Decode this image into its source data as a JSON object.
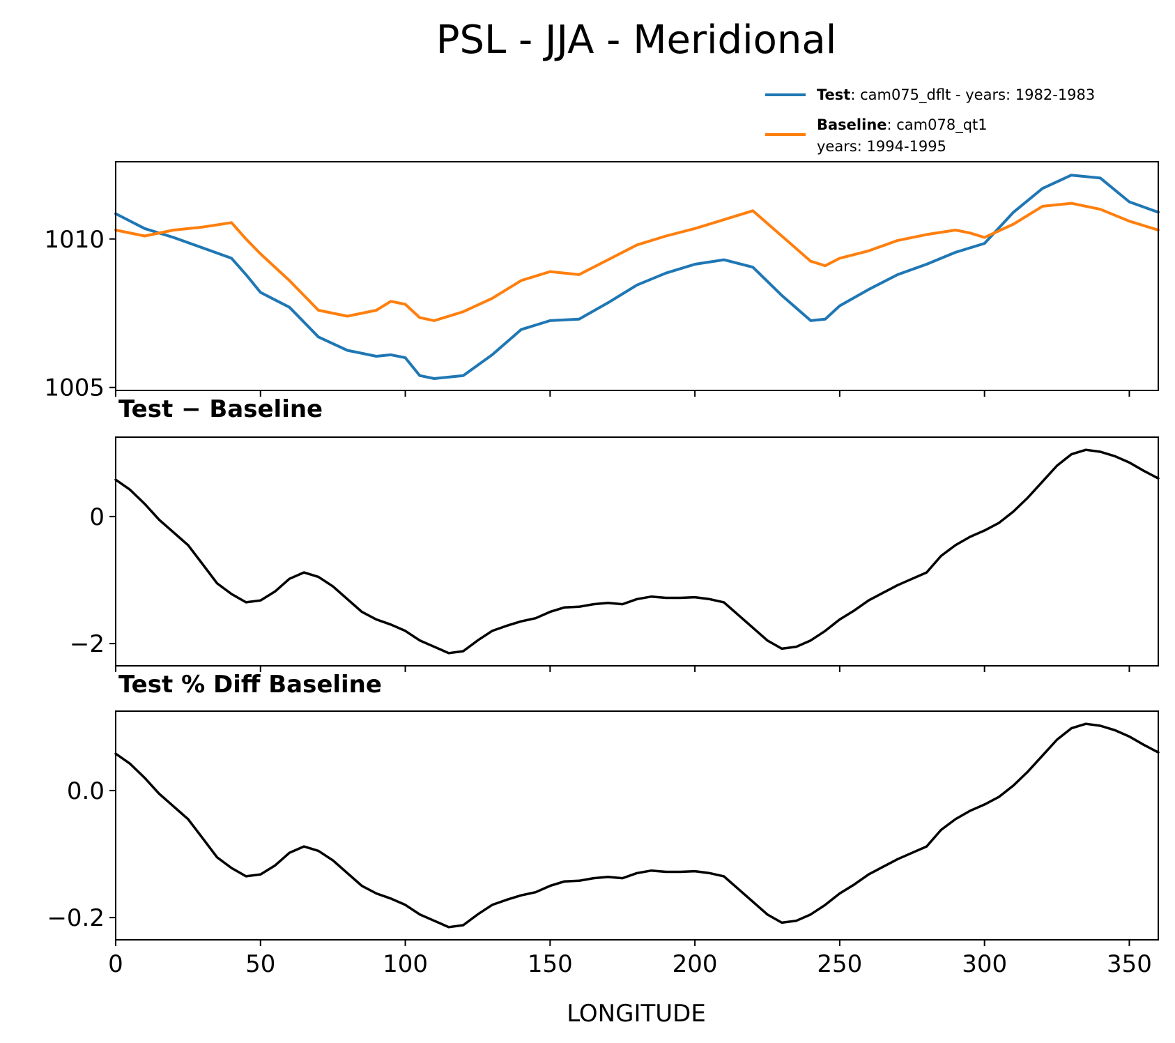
{
  "chart_data": [
    {
      "type": "line",
      "title": "PSL - JJA - Meridional",
      "xlabel": "",
      "ylabel": "",
      "xlim": [
        0,
        360
      ],
      "ylim": [
        1004.9,
        1012.6
      ],
      "yticks": [
        1005,
        1010
      ],
      "ytick_labels": [
        "1005",
        "1010"
      ],
      "x": [
        0,
        10,
        20,
        30,
        40,
        45,
        50,
        60,
        70,
        80,
        90,
        95,
        100,
        105,
        110,
        120,
        130,
        140,
        150,
        160,
        170,
        180,
        190,
        200,
        210,
        220,
        230,
        240,
        245,
        250,
        260,
        270,
        280,
        290,
        295,
        300,
        310,
        320,
        330,
        340,
        350,
        360
      ],
      "series": [
        {
          "name": "Test",
          "desc": ": cam075_dflt - years: 1982-1983",
          "color": "#1f77b4",
          "values": [
            1010.85,
            1010.35,
            1010.05,
            1009.7,
            1009.35,
            1008.8,
            1008.2,
            1007.7,
            1006.7,
            1006.25,
            1006.05,
            1006.1,
            1006.0,
            1005.4,
            1005.3,
            1005.4,
            1006.1,
            1006.95,
            1007.25,
            1007.3,
            1007.85,
            1008.45,
            1008.85,
            1009.15,
            1009.3,
            1009.05,
            1008.1,
            1007.25,
            1007.3,
            1007.75,
            1008.3,
            1008.8,
            1009.15,
            1009.55,
            1009.7,
            1009.85,
            1010.9,
            1011.7,
            1012.15,
            1012.05,
            1011.25,
            1010.9
          ]
        },
        {
          "name": "Baseline",
          "desc": ": cam078_qt1",
          "desc2": "years: 1994-1995",
          "color": "#ff7f0e",
          "values": [
            1010.3,
            1010.1,
            1010.3,
            1010.4,
            1010.55,
            1010.0,
            1009.5,
            1008.6,
            1007.6,
            1007.4,
            1007.6,
            1007.9,
            1007.8,
            1007.35,
            1007.25,
            1007.55,
            1008.0,
            1008.6,
            1008.9,
            1008.8,
            1009.3,
            1009.8,
            1010.1,
            1010.35,
            1010.65,
            1010.95,
            1010.1,
            1009.25,
            1009.1,
            1009.35,
            1009.6,
            1009.95,
            1010.15,
            1010.3,
            1010.2,
            1010.05,
            1010.5,
            1011.1,
            1011.2,
            1011.0,
            1010.6,
            1010.3
          ]
        }
      ]
    },
    {
      "type": "line",
      "title": "Test − Baseline",
      "xlabel": "",
      "ylabel": "",
      "xlim": [
        0,
        360
      ],
      "ylim": [
        -2.35,
        1.25
      ],
      "yticks": [
        -2,
        0
      ],
      "ytick_labels": [
        "−2",
        "0"
      ],
      "x": [
        0,
        5,
        10,
        15,
        20,
        25,
        30,
        35,
        40,
        45,
        50,
        55,
        60,
        65,
        70,
        75,
        80,
        85,
        90,
        95,
        100,
        105,
        110,
        115,
        120,
        125,
        130,
        135,
        140,
        145,
        150,
        155,
        160,
        165,
        170,
        175,
        180,
        185,
        190,
        195,
        200,
        205,
        210,
        215,
        220,
        225,
        230,
        235,
        240,
        245,
        250,
        255,
        260,
        265,
        270,
        275,
        280,
        285,
        290,
        295,
        300,
        305,
        310,
        315,
        320,
        325,
        330,
        335,
        340,
        345,
        350,
        355,
        360
      ],
      "series": [
        {
          "name": "Test − Baseline",
          "color": "#000000",
          "values": [
            0.58,
            0.42,
            0.2,
            -0.05,
            -0.25,
            -0.45,
            -0.75,
            -1.05,
            -1.22,
            -1.35,
            -1.32,
            -1.18,
            -0.98,
            -0.88,
            -0.95,
            -1.1,
            -1.3,
            -1.5,
            -1.62,
            -1.7,
            -1.8,
            -1.95,
            -2.05,
            -2.15,
            -2.12,
            -1.95,
            -1.8,
            -1.72,
            -1.65,
            -1.6,
            -1.5,
            -1.43,
            -1.42,
            -1.38,
            -1.36,
            -1.38,
            -1.3,
            -1.26,
            -1.28,
            -1.28,
            -1.27,
            -1.3,
            -1.35,
            -1.55,
            -1.75,
            -1.95,
            -2.08,
            -2.05,
            -1.95,
            -1.8,
            -1.62,
            -1.48,
            -1.32,
            -1.2,
            -1.08,
            -0.98,
            -0.88,
            -0.62,
            -0.45,
            -0.32,
            -0.22,
            -0.1,
            0.08,
            0.3,
            0.55,
            0.8,
            0.98,
            1.05,
            1.02,
            0.95,
            0.85,
            0.72,
            0.6
          ]
        }
      ]
    },
    {
      "type": "line",
      "title": "Test % Diff Baseline",
      "xlabel": "LONGITUDE",
      "ylabel": "",
      "xlim": [
        0,
        360
      ],
      "xticks": [
        0,
        50,
        100,
        150,
        200,
        250,
        300,
        350
      ],
      "xtick_labels": [
        "0",
        "50",
        "100",
        "150",
        "200",
        "250",
        "300",
        "350"
      ],
      "ylim": [
        -0.235,
        0.125
      ],
      "yticks": [
        -0.2,
        0.0
      ],
      "ytick_labels": [
        "−0.2",
        "0.0"
      ],
      "x": [
        0,
        5,
        10,
        15,
        20,
        25,
        30,
        35,
        40,
        45,
        50,
        55,
        60,
        65,
        70,
        75,
        80,
        85,
        90,
        95,
        100,
        105,
        110,
        115,
        120,
        125,
        130,
        135,
        140,
        145,
        150,
        155,
        160,
        165,
        170,
        175,
        180,
        185,
        190,
        195,
        200,
        205,
        210,
        215,
        220,
        225,
        230,
        235,
        240,
        245,
        250,
        255,
        260,
        265,
        270,
        275,
        280,
        285,
        290,
        295,
        300,
        305,
        310,
        315,
        320,
        325,
        330,
        335,
        340,
        345,
        350,
        355,
        360
      ],
      "series": [
        {
          "name": "Test % Diff Baseline",
          "color": "#000000",
          "values": [
            0.058,
            0.042,
            0.02,
            -0.005,
            -0.025,
            -0.045,
            -0.075,
            -0.105,
            -0.122,
            -0.135,
            -0.132,
            -0.118,
            -0.098,
            -0.088,
            -0.095,
            -0.11,
            -0.13,
            -0.15,
            -0.162,
            -0.17,
            -0.18,
            -0.195,
            -0.205,
            -0.215,
            -0.212,
            -0.195,
            -0.18,
            -0.172,
            -0.165,
            -0.16,
            -0.15,
            -0.143,
            -0.142,
            -0.138,
            -0.136,
            -0.138,
            -0.13,
            -0.126,
            -0.128,
            -0.128,
            -0.127,
            -0.13,
            -0.135,
            -0.155,
            -0.175,
            -0.195,
            -0.208,
            -0.205,
            -0.195,
            -0.18,
            -0.162,
            -0.148,
            -0.132,
            -0.12,
            -0.108,
            -0.098,
            -0.088,
            -0.062,
            -0.045,
            -0.032,
            -0.022,
            -0.01,
            0.008,
            0.03,
            0.055,
            0.08,
            0.098,
            0.105,
            0.102,
            0.095,
            0.085,
            0.072,
            0.06
          ]
        }
      ]
    }
  ]
}
